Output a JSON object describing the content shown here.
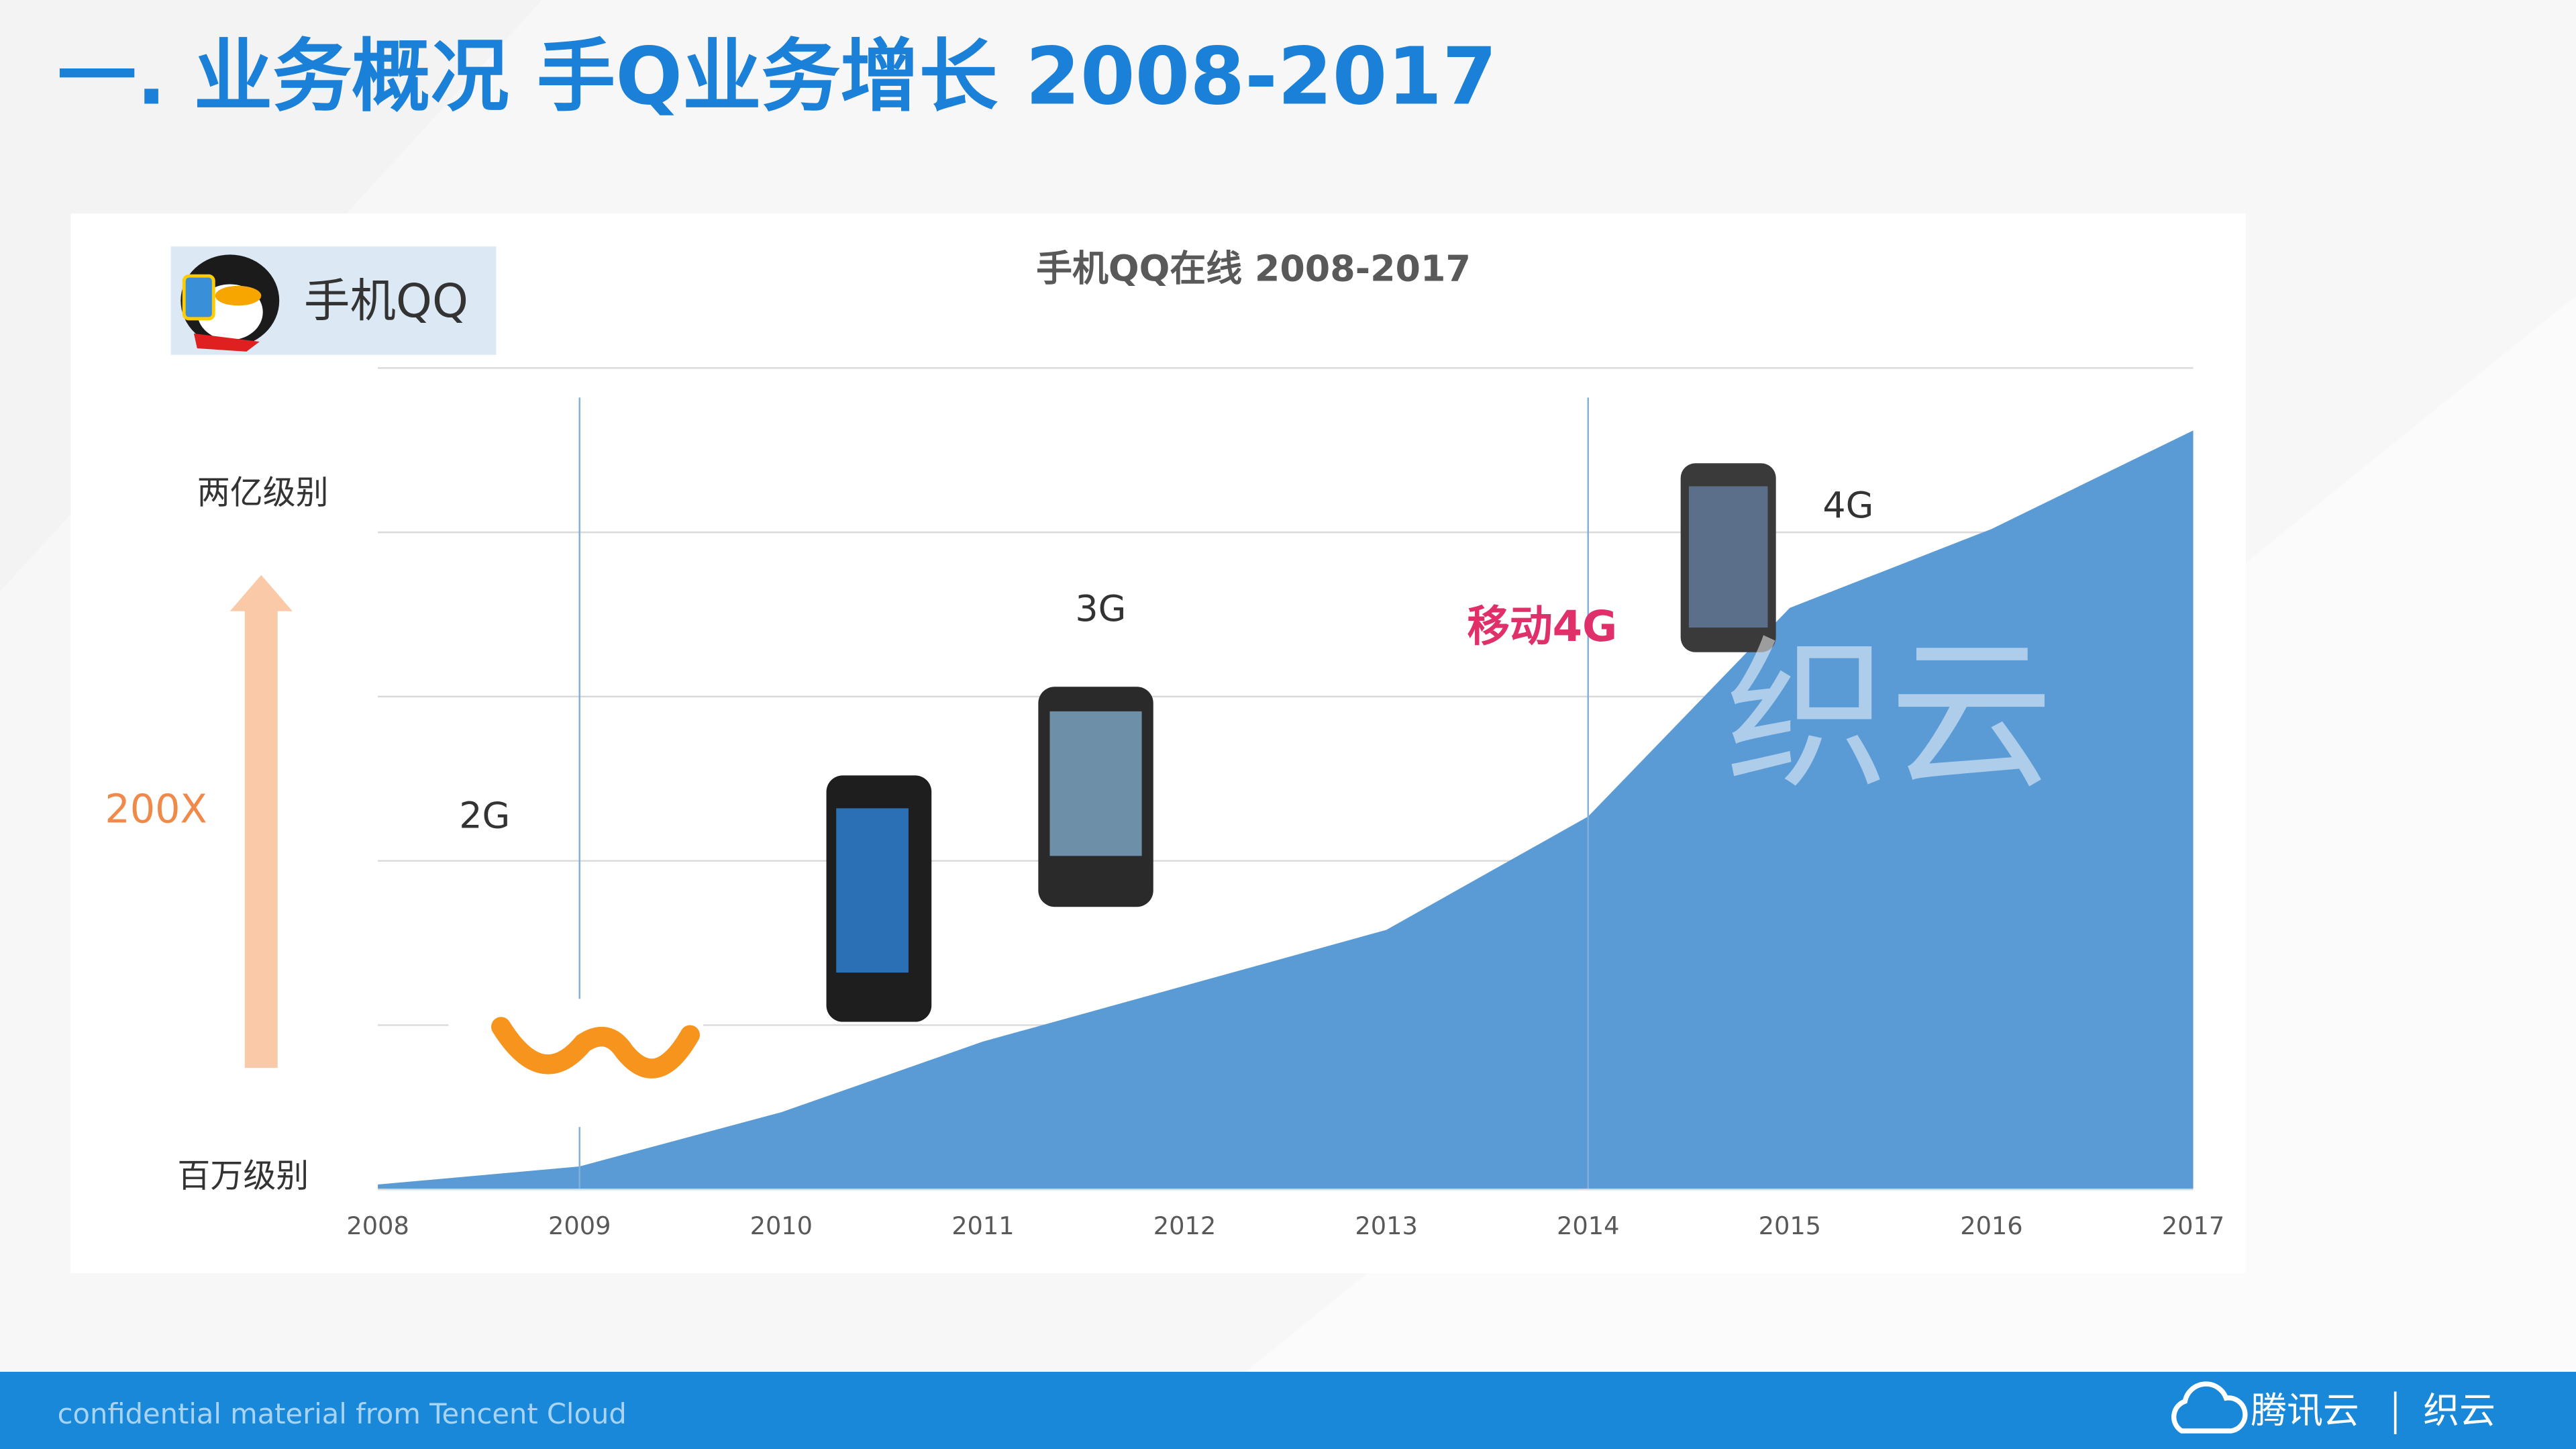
{
  "slide": {
    "title": "一. 业务概况 手Q业务增长 2008-2017",
    "logo_text": "手机QQ",
    "logo_4g": "移动4G",
    "watermark": "织云",
    "footer": "confidential material from Tencent Cloud",
    "brand": "腾讯云",
    "brand2": "织云"
  },
  "chart_data": {
    "type": "area",
    "title": "手机QQ在线 2008-2017",
    "categories": [
      "2008",
      "2009",
      "2010",
      "2011",
      "2012",
      "2013",
      "2014",
      "2015",
      "2016",
      "2017"
    ],
    "values": [
      0.03,
      0.14,
      0.47,
      0.9,
      1.24,
      1.58,
      2.27,
      3.54,
      4.02,
      4.62
    ],
    "color": "#5b9bd5",
    "ylim": [
      0,
      5
    ],
    "yticks": [
      1,
      2,
      3,
      4,
      5
    ],
    "grid": true,
    "annotations": [
      "两亿级别",
      "百万级别",
      "200X",
      "2G",
      "3G",
      "4G"
    ]
  }
}
